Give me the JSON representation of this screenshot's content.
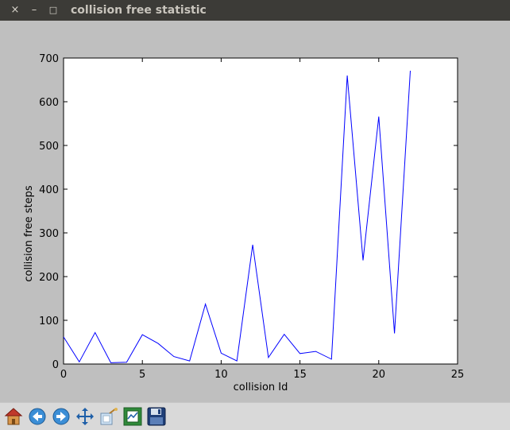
{
  "window": {
    "title": "collision free statistic",
    "close_icon": "×",
    "minimize_icon": "–",
    "maximize_icon": "□"
  },
  "toolbar": {
    "buttons": [
      "home-icon",
      "back-arrow-icon",
      "forward-arrow-icon",
      "pan-move-icon",
      "zoom-rect-icon",
      "configure-subplots-icon",
      "save-floppy-icon"
    ]
  },
  "chart_data": {
    "type": "line",
    "xlabel": "collision Id",
    "ylabel": "collision free steps",
    "xlim": [
      0,
      25
    ],
    "ylim": [
      0,
      700
    ],
    "xticks": [
      0,
      5,
      10,
      15,
      20,
      25
    ],
    "yticks": [
      0,
      100,
      200,
      300,
      400,
      500,
      600,
      700
    ],
    "grid": false,
    "series": [
      {
        "color": "#0000ff",
        "x": [
          0,
          1,
          2,
          3,
          4,
          5,
          6,
          7,
          8,
          9,
          10,
          11,
          12,
          13,
          14,
          15,
          16,
          17,
          18,
          19,
          20,
          21,
          22
        ],
        "y": [
          62,
          5,
          72,
          3,
          4,
          67,
          47,
          17,
          7,
          137,
          25,
          7,
          273,
          15,
          68,
          24,
          29,
          11,
          660,
          237,
          566,
          70,
          671
        ]
      }
    ]
  }
}
